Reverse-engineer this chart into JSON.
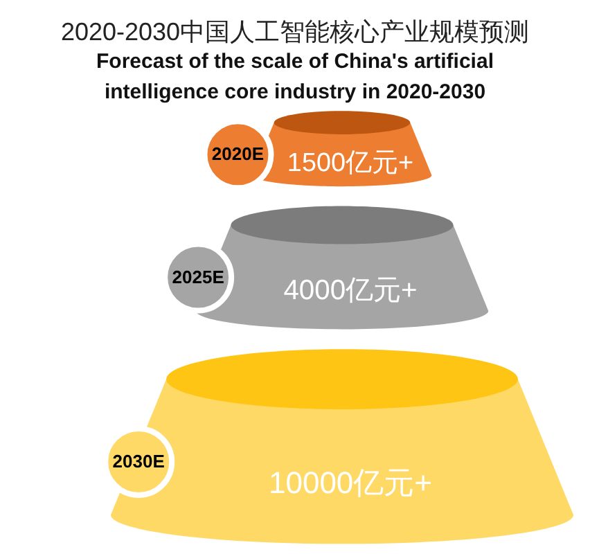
{
  "chart_data": {
    "type": "other",
    "title": "2020-2030中国人工智能核心产业规模预测",
    "subtitle": "Forecast of the scale of China's artificial intelligence core industry in 2020-2030",
    "categories": [
      "2020E",
      "2025E",
      "2030E"
    ],
    "values": [
      1500,
      4000,
      10000
    ],
    "value_labels": [
      "1500亿元+",
      "4000亿元+",
      "10000亿元+"
    ],
    "colors": [
      "#ed7d31",
      "#a5a5a5",
      "#ffd966"
    ]
  }
}
